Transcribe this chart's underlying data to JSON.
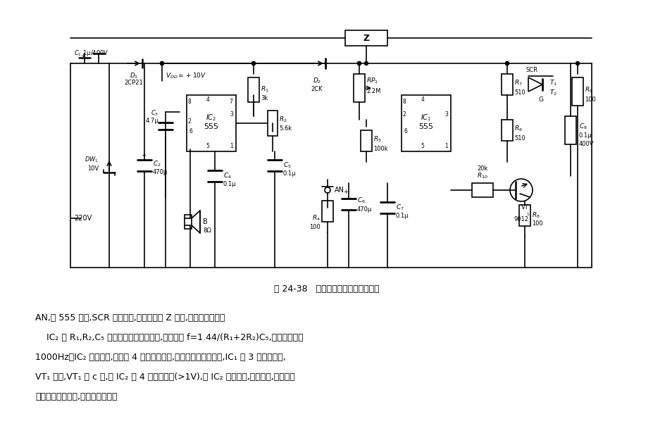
{
  "title": "图 24-38   电镀定时自动停机报讯电路",
  "background_color": "#ffffff",
  "fig_width": 9.28,
  "fig_height": 6.32,
  "text_lines": [
    "AN,则 555 置位,SCR 触发导通,主机接触器 Z 得电,电镀计时开始。",
    "    IC₂ 和 R₁,R₂,C₅ 组成无稳态多谐振荡器,振荡频率 f=1.44/(R₁+2R₂)C₅,图示参数约为",
    "1000Hz。IC₂ 振荡与否,取决于 4 脚的控制电平,当预置定时时间一到,IC₁ 的 3 脚呈低电平,",
    "VT₁ 导通,VT₁ 的 c 极,即 IC₂ 的 4 脚呈高电平(>1V),则 IC₂ 开始振荡,发出音响,提请操作",
    "者这批镀件已镀好,可镀下一批了。"
  ]
}
